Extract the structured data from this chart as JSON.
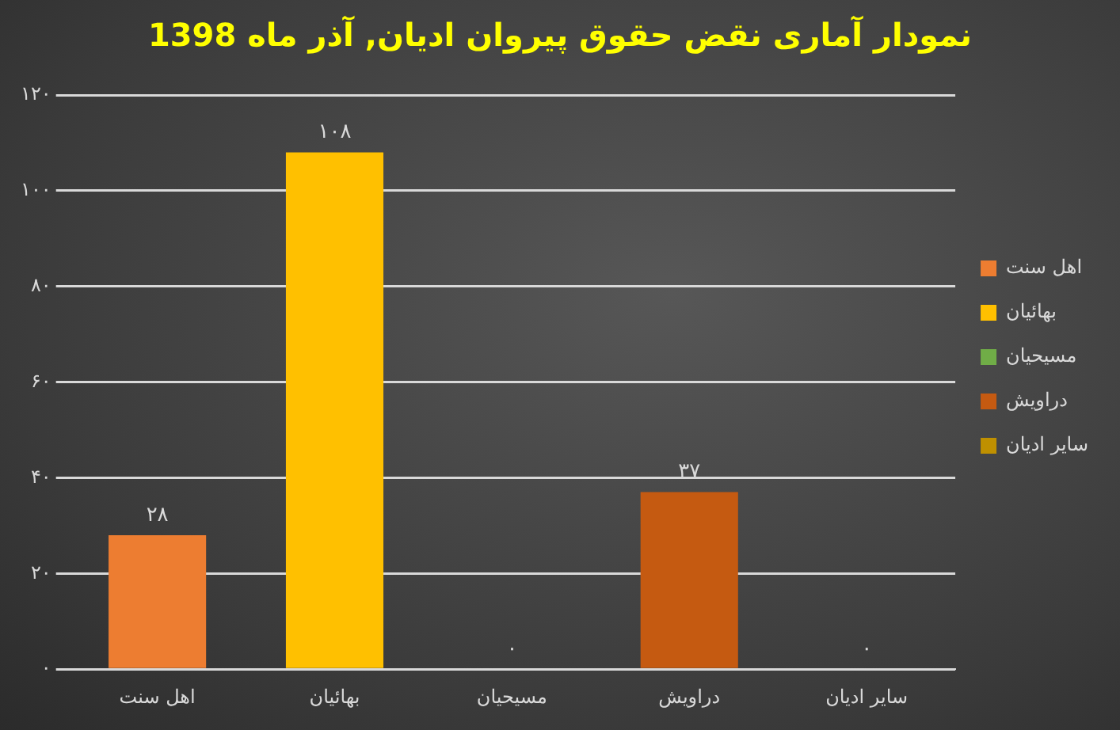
{
  "chart_data": {
    "type": "bar",
    "title": "نمودار آماری نقض حقوق پیروان ادیان, آذر ماه 1398",
    "categories": [
      "اهل سنت",
      "بهائیان",
      "مسیحیان",
      "دراویش",
      "سایر ادیان"
    ],
    "series": [
      {
        "name": "اهل سنت",
        "color": "#ed7d31",
        "values": [
          28,
          null,
          null,
          null,
          null
        ],
        "value_labels": [
          "۲۸",
          null,
          null,
          null,
          null
        ]
      },
      {
        "name": "بهائیان",
        "color": "#ffc000",
        "values": [
          null,
          108,
          null,
          null,
          null
        ],
        "value_labels": [
          null,
          "۱۰۸",
          null,
          null,
          null
        ]
      },
      {
        "name": "مسیحیان",
        "color": "#70ad47",
        "values": [
          null,
          null,
          0,
          null,
          null
        ],
        "value_labels": [
          null,
          null,
          "۰",
          null,
          null
        ]
      },
      {
        "name": "دراویش",
        "color": "#c55a11",
        "values": [
          null,
          null,
          null,
          37,
          null
        ],
        "value_labels": [
          null,
          null,
          null,
          "۳۷",
          null
        ]
      },
      {
        "name": "سایر ادیان",
        "color": "#bf9000",
        "values": [
          null,
          null,
          null,
          null,
          0
        ],
        "value_labels": [
          null,
          null,
          null,
          null,
          "۰"
        ]
      }
    ],
    "ylim": [
      0,
      120
    ],
    "yticks": [
      {
        "value": 0,
        "label": "۰"
      },
      {
        "value": 20,
        "label": "۲۰"
      },
      {
        "value": 40,
        "label": "۴۰"
      },
      {
        "value": 60,
        "label": "۶۰"
      },
      {
        "value": 80,
        "label": "۸۰"
      },
      {
        "value": 100,
        "label": "۱۰۰"
      },
      {
        "value": 120,
        "label": "۱۲۰"
      }
    ],
    "grid": "y",
    "legend": "right"
  }
}
